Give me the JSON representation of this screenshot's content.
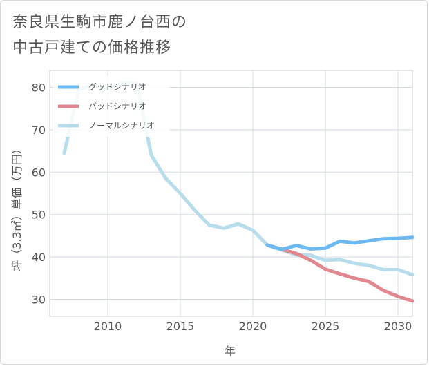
{
  "title_lines": [
    "奈良県生駒市鹿ノ台西の",
    "中古戸建ての価格推移"
  ],
  "chart_data": {
    "type": "line",
    "xlabel": "年",
    "ylabel": "坪（3.3㎡）単価（万円）",
    "xlim": [
      2006,
      2031
    ],
    "ylim": [
      26,
      84
    ],
    "x_ticks": [
      "2010",
      "2015",
      "2020",
      "2025",
      "2030"
    ],
    "y_ticks": [
      "30",
      "40",
      "50",
      "60",
      "70",
      "80"
    ],
    "grid": true,
    "legend_position": "top-left",
    "series": [
      {
        "name": "グッドシナリオ",
        "color": "#6cb8f0",
        "x": [
          2021,
          2022,
          2023,
          2024,
          2025,
          2026,
          2027,
          2028,
          2029,
          2030,
          2031
        ],
        "y": [
          42.8,
          41.8,
          42.7,
          41.9,
          42.1,
          43.7,
          43.3,
          43.8,
          44.3,
          44.4,
          44.6
        ]
      },
      {
        "name": "バッドシナリオ",
        "color": "#e0878f",
        "x": [
          2021,
          2022,
          2023,
          2024,
          2025,
          2026,
          2027,
          2028,
          2029,
          2030,
          2031
        ],
        "y": [
          42.8,
          41.8,
          40.8,
          39.2,
          37.1,
          36.0,
          35.0,
          34.2,
          32.1,
          30.7,
          29.6
        ]
      },
      {
        "name": "ノーマルシナリオ",
        "color": "#b7dcec",
        "x": [
          2007,
          2008,
          2009,
          2010,
          2011,
          2012,
          2013,
          2014,
          2015,
          2016,
          2017,
          2018,
          2019,
          2020,
          2021,
          2022,
          2023,
          2024,
          2025,
          2026,
          2027,
          2028,
          2029,
          2030,
          2031
        ],
        "y": [
          64.5,
          79.5,
          80.5,
          79.5,
          81.0,
          81.0,
          64.0,
          58.5,
          55.0,
          51.0,
          47.5,
          46.8,
          47.8,
          46.3,
          42.8,
          41.6,
          40.5,
          40.4,
          39.2,
          39.4,
          38.5,
          38.0,
          37.0,
          37.0,
          35.8
        ]
      }
    ]
  }
}
